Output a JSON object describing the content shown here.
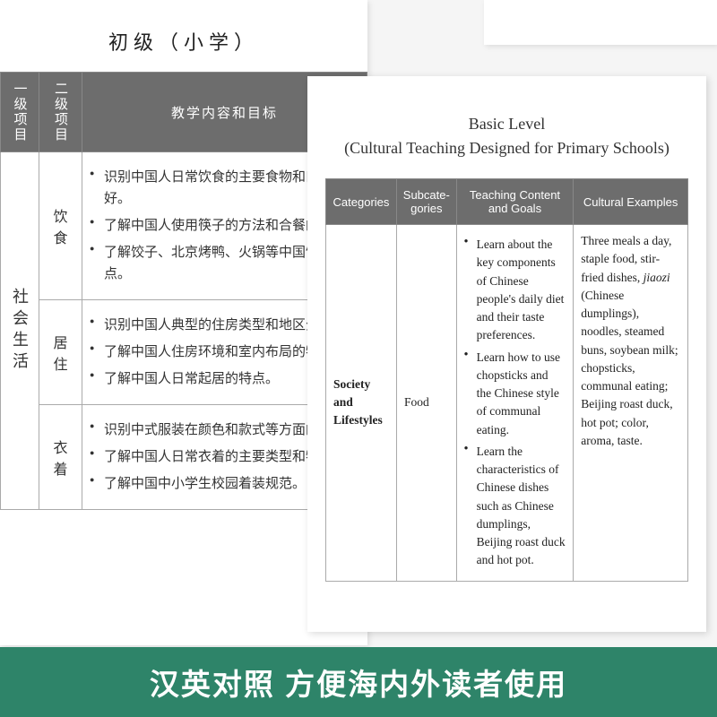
{
  "left": {
    "title": "初级（小学）",
    "headers": {
      "col1": "一级项目",
      "col2": "二级项目",
      "col3": "教学内容和目标"
    },
    "category": "社会生活",
    "rows": [
      {
        "sub": "饮食",
        "items": [
          "识别中国人日常饮食的主要食物和口味偏好。",
          "了解中国人使用筷子的方法和合餐的习惯。",
          "了解饺子、北京烤鸭、火锅等中国饮食的特点。"
        ]
      },
      {
        "sub": "居住",
        "items": [
          "识别中国人典型的住房类型和地区分布。",
          "了解中国人住房环境和室内布局的特点。",
          "了解中国人日常起居的特点。"
        ]
      },
      {
        "sub": "衣着",
        "items": [
          "识别中式服装在颜色和款式等方面的特点。",
          "了解中国人日常衣着的主要类型和特点。",
          "了解中国中小学生校园着装规范。"
        ]
      }
    ]
  },
  "right": {
    "title1": "Basic Level",
    "title2": "(Cultural Teaching Designed for Primary Schools)",
    "headers": {
      "c1": "Categories",
      "c2": "Subcate-gories",
      "c3": "Teaching Content and Goals",
      "c4": "Cultural Examples"
    },
    "row": {
      "cat": "Society and Lifestyles",
      "sub": "Food",
      "goals": [
        "Learn about the key components of Chinese people's daily diet and their taste preferences.",
        "Learn how to use chopsticks and the Chinese style of communal eating.",
        "Learn the characteristics of Chinese dishes such as Chinese dumplings, Beijing roast duck and hot pot."
      ],
      "examples_pre": "Three meals a day, staple food, stir-fried dishes, ",
      "examples_italic": "jiaozi",
      "examples_post": " (Chinese dumplings), noodles, steamed buns, soybean milk; chopsticks, communal eating; Beijing roast duck, hot pot; color,  aroma, taste."
    }
  },
  "banner": "汉英对照 方便海内外读者使用"
}
